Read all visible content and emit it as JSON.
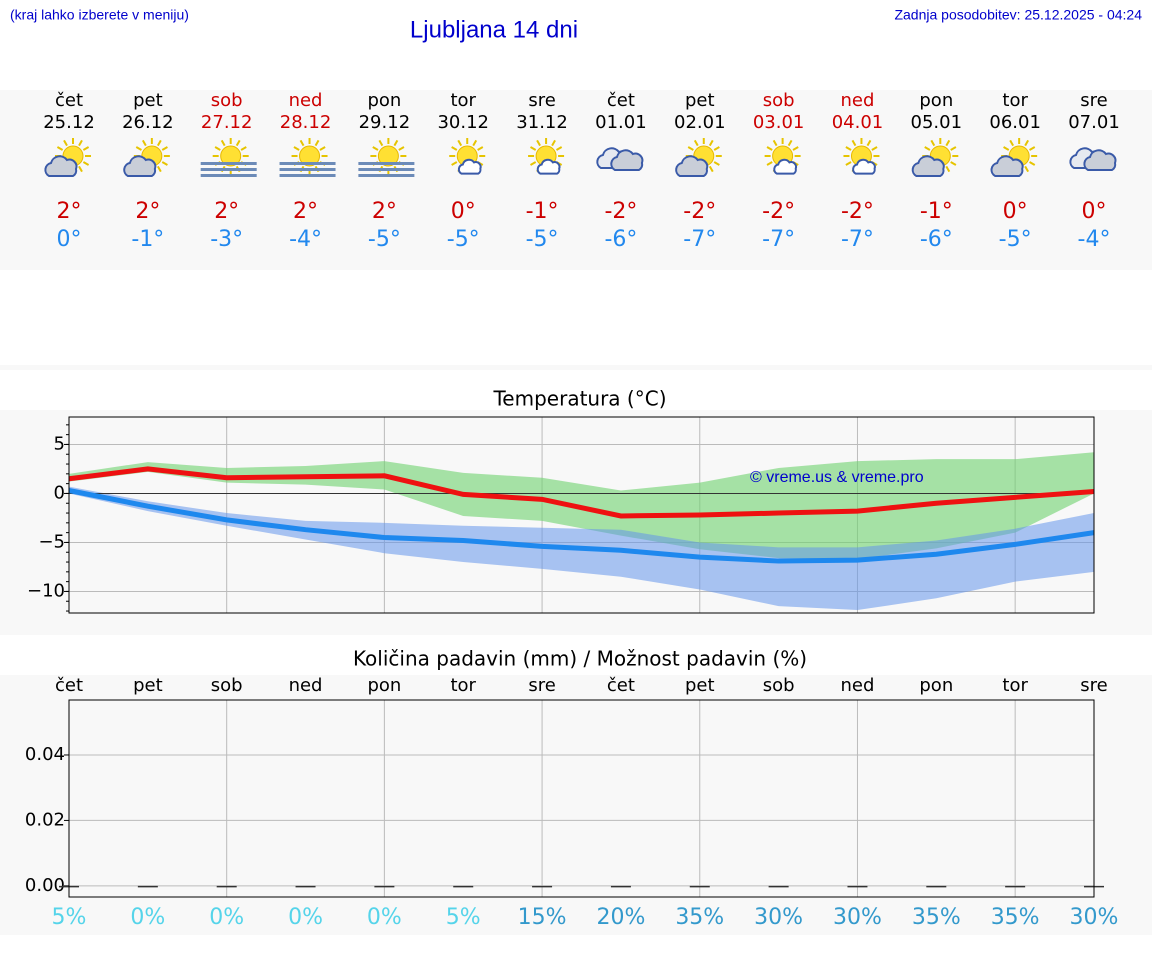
{
  "header": {
    "hint": "(kraj lahko izberete v meniju)",
    "title": "Ljubljana 14 dni",
    "updated": "Zadnja posodobitev: 25.12.2025 - 04:24"
  },
  "forecast": [
    {
      "weekday": "čet",
      "date": "25.12",
      "high": "2°",
      "low": "0°",
      "weekend": false,
      "icon": "sun-cloud"
    },
    {
      "weekday": "pet",
      "date": "26.12",
      "high": "2°",
      "low": "-1°",
      "weekend": false,
      "icon": "sun-cloud"
    },
    {
      "weekday": "sob",
      "date": "27.12",
      "high": "2°",
      "low": "-3°",
      "weekend": true,
      "icon": "sun-fog"
    },
    {
      "weekday": "ned",
      "date": "28.12",
      "high": "2°",
      "low": "-4°",
      "weekend": true,
      "icon": "sun-fog"
    },
    {
      "weekday": "pon",
      "date": "29.12",
      "high": "2°",
      "low": "-5°",
      "weekend": false,
      "icon": "sun-fog"
    },
    {
      "weekday": "tor",
      "date": "30.12",
      "high": "0°",
      "low": "-5°",
      "weekend": false,
      "icon": "sun-smallcloud"
    },
    {
      "weekday": "sre",
      "date": "31.12",
      "high": "-1°",
      "low": "-5°",
      "weekend": false,
      "icon": "sun-smallcloud"
    },
    {
      "weekday": "čet",
      "date": "01.01",
      "high": "-2°",
      "low": "-6°",
      "weekend": false,
      "icon": "clouds"
    },
    {
      "weekday": "pet",
      "date": "02.01",
      "high": "-2°",
      "low": "-7°",
      "weekend": false,
      "icon": "sun-cloud"
    },
    {
      "weekday": "sob",
      "date": "03.01",
      "high": "-2°",
      "low": "-7°",
      "weekend": true,
      "icon": "sun-smallcloud"
    },
    {
      "weekday": "ned",
      "date": "04.01",
      "high": "-2°",
      "low": "-7°",
      "weekend": true,
      "icon": "sun-smallcloud"
    },
    {
      "weekday": "pon",
      "date": "05.01",
      "high": "-1°",
      "low": "-6°",
      "weekend": false,
      "icon": "sun-cloud"
    },
    {
      "weekday": "tor",
      "date": "06.01",
      "high": "0°",
      "low": "-5°",
      "weekend": false,
      "icon": "sun-cloud"
    },
    {
      "weekday": "sre",
      "date": "07.01",
      "high": "0°",
      "low": "-4°",
      "weekend": false,
      "icon": "clouds"
    }
  ],
  "chart_data": [
    {
      "type": "line",
      "title": "Temperatura (°C)",
      "annotation": "© vreme.us & vreme.pro",
      "ylim": [
        -12.2,
        7.8
      ],
      "yticks": [
        {
          "value": -10,
          "label": "−10"
        },
        {
          "value": -5,
          "label": "−5"
        },
        0,
        5
      ],
      "grid": true,
      "series": [
        {
          "color": "#ee1111",
          "values": [
            1.5,
            2.5,
            1.6,
            1.7,
            1.8,
            -0.1,
            -0.6,
            -2.3,
            -2.2,
            -2.0,
            -1.8,
            -1.0,
            -0.4,
            0.2
          ],
          "band": {
            "color": "rgba(110,210,110,0.6)",
            "high": [
              2.0,
              3.2,
              2.6,
              2.8,
              3.3,
              2.1,
              1.6,
              0.3,
              1.1,
              2.6,
              3.3,
              3.5,
              3.5,
              4.2
            ],
            "low": [
              1.2,
              2.2,
              1.1,
              0.9,
              0.4,
              -2.3,
              -2.8,
              -4.3,
              -5.7,
              -6.6,
              -6.7,
              -5.6,
              -4.0,
              0.0
            ]
          }
        },
        {
          "color": "#1e88ee",
          "values": [
            0.3,
            -1.3,
            -2.7,
            -3.7,
            -4.5,
            -4.8,
            -5.4,
            -5.8,
            -6.5,
            -6.9,
            -6.8,
            -6.2,
            -5.2,
            -4.0
          ],
          "band": {
            "color": "rgba(100,150,235,0.55)",
            "high": [
              0.7,
              -0.8,
              -2.0,
              -2.8,
              -3.0,
              -3.3,
              -3.5,
              -3.7,
              -5.0,
              -5.5,
              -5.5,
              -4.8,
              -3.6,
              -2.0
            ],
            "low": [
              0.0,
              -1.8,
              -3.3,
              -4.7,
              -6.1,
              -7.0,
              -7.7,
              -8.5,
              -9.8,
              -11.5,
              -11.9,
              -10.7,
              -9.0,
              -8.0
            ]
          }
        }
      ]
    },
    {
      "type": "bar",
      "title": "Količina padavin (mm) / Možnost padavin (%)",
      "color": "#333333",
      "categories": [
        "čet",
        "pet",
        "sob",
        "ned",
        "pon",
        "tor",
        "sre",
        "čet",
        "pet",
        "sob",
        "ned",
        "pon",
        "tor",
        "sre"
      ],
      "values": [
        0,
        0,
        0,
        0,
        0,
        0,
        0,
        0,
        0,
        0,
        0,
        0,
        0,
        0
      ],
      "ylim": [
        -0.0034,
        0.0568
      ],
      "yticks": [
        {
          "value": 0,
          "label": "0.00"
        },
        {
          "value": 0.02,
          "label": "0.02"
        },
        {
          "value": 0.04,
          "label": "0.04"
        }
      ],
      "grid": true,
      "probability": {
        "values": [
          5,
          0,
          0,
          0,
          0,
          5,
          15,
          20,
          35,
          30,
          30,
          35,
          35,
          30
        ],
        "value_labels": [
          "5%",
          "0%",
          "0%",
          "0%",
          "0%",
          "5%",
          "15%",
          "20%",
          "35%",
          "30%",
          "30%",
          "35%",
          "35%",
          "30%"
        ],
        "colors": [
          "#55d4ea",
          "#55d4ea",
          "#55d4ea",
          "#55d4ea",
          "#55d4ea",
          "#55d4ea",
          "#3399cc",
          "#3399cc",
          "#3399cc",
          "#3399cc",
          "#3399cc",
          "#3399cc",
          "#3399cc",
          "#3399cc"
        ]
      }
    }
  ]
}
